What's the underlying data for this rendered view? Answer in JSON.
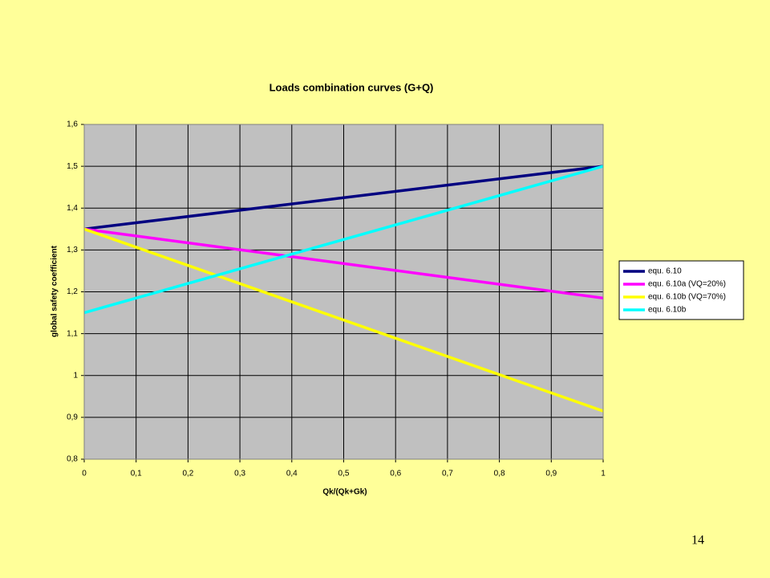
{
  "chart_data": {
    "type": "line",
    "title": "Loads combination curves (G+Q)",
    "x_label": "Qk/(Qk+Gk)",
    "y_label": "global safety coefficient",
    "x": [
      0,
      1
    ],
    "series": [
      {
        "name": "equ. 6.10",
        "color": "#000080",
        "values": [
          1.35,
          1.5
        ]
      },
      {
        "name": "equ. 6.10a (VQ=20%)",
        "color": "#ff00ff",
        "values": [
          1.35,
          1.185
        ]
      },
      {
        "name": "equ. 6.10b (VQ=70%)",
        "color": "#ffff00",
        "values": [
          1.35,
          0.915
        ]
      },
      {
        "name": "equ. 6.10b",
        "color": "#00ffff",
        "values": [
          1.15,
          1.5
        ]
      }
    ],
    "xlim": [
      0,
      1
    ],
    "xticks": [
      0,
      {
        "value": 0.1,
        "label": "0,1"
      },
      {
        "value": 0.2,
        "label": "0,2"
      },
      {
        "value": 0.3,
        "label": "0,3"
      },
      {
        "value": 0.4,
        "label": "0,4"
      },
      {
        "value": 0.5,
        "label": "0,5"
      },
      {
        "value": 0.6,
        "label": "0,6"
      },
      {
        "value": 0.7,
        "label": "0,7"
      },
      {
        "value": 0.8,
        "label": "0,8"
      },
      {
        "value": 0.9,
        "label": "0,9"
      },
      1
    ],
    "ylim": [
      0.8,
      1.6
    ],
    "yticks": [
      {
        "value": 0.8,
        "label": "0,8"
      },
      {
        "value": 0.9,
        "label": "0,9"
      },
      1,
      {
        "value": 1.1,
        "label": "1,1"
      },
      {
        "value": 1.2,
        "label": "1,2"
      },
      {
        "value": 1.3,
        "label": "1,3"
      },
      {
        "value": 1.4,
        "label": "1,4"
      },
      {
        "value": 1.5,
        "label": "1,5"
      },
      {
        "value": 1.6,
        "label": "1,6"
      }
    ],
    "grid": true,
    "legend": "right"
  },
  "page_number": "14"
}
